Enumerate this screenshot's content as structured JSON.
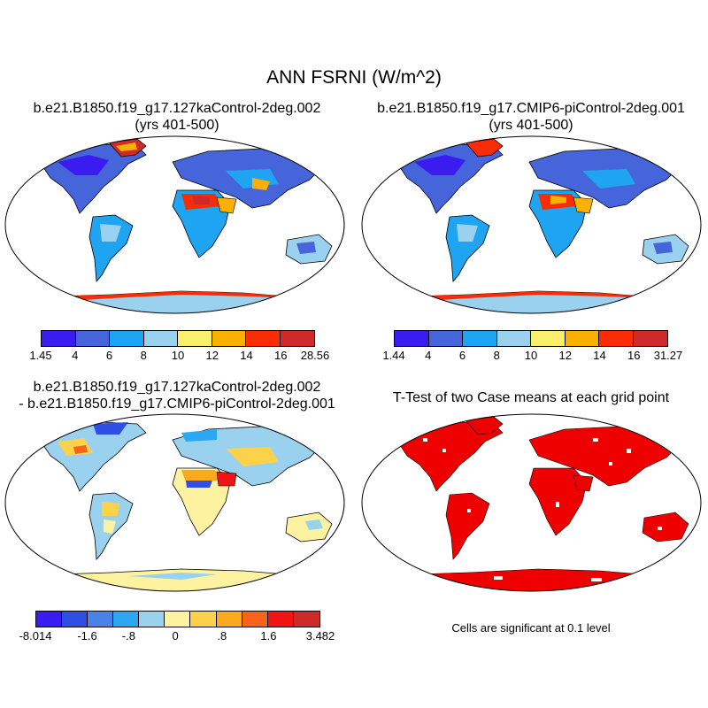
{
  "figure": {
    "title": "ANN FSRNI (W/m^2)"
  },
  "panels": [
    {
      "title_line1": "b.e21.B1850.f19_g17.127kaControl-2deg.002",
      "title_line2": "(yrs 401-500)",
      "colorbar": {
        "colors": [
          "#3a1cf0",
          "#4665db",
          "#1ea4f0",
          "#9ad1ee",
          "#fbef6d",
          "#fbb000",
          "#f82c05",
          "#cf2a2a"
        ],
        "labels": [
          "1.45",
          "4",
          "6",
          "8",
          "10",
          "12",
          "14",
          "16",
          "28.56"
        ]
      }
    },
    {
      "title_line1": "b.e21.B1850.f19_g17.CMIP6-piControl-2deg.001",
      "title_line2": "(yrs 401-500)",
      "colorbar": {
        "colors": [
          "#3a1cf0",
          "#4665db",
          "#1ea4f0",
          "#9ad1ee",
          "#fbef6d",
          "#fbb000",
          "#f82c05",
          "#cf2a2a"
        ],
        "labels": [
          "1.44",
          "4",
          "6",
          "8",
          "10",
          "12",
          "14",
          "16",
          "31.27"
        ]
      }
    },
    {
      "title_line1": "b.e21.B1850.f19_g17.127kaControl-2deg.002",
      "title_line2": "- b.e21.B1850.f19_g17.CMIP6-piControl-2deg.001",
      "colorbar": {
        "colors": [
          "#3a1cf0",
          "#2f4fe4",
          "#4b82e8",
          "#2aa8f2",
          "#9ad1ee",
          "#fdf2a0",
          "#fbd24a",
          "#fbaa1f",
          "#f8621a",
          "#f01414",
          "#cf2a2a"
        ],
        "labels": [
          "-8.014",
          "-1.6",
          "-.8",
          "0",
          ".8",
          "1.6",
          "3.482"
        ]
      }
    },
    {
      "title_line1": "T-Test of two Case means at each grid point",
      "note": "Cells are significant at 0.1 level",
      "significance_color": "#ee0000"
    }
  ],
  "colors": {
    "ocean": "#ffffff",
    "land_outline": "#000000"
  }
}
